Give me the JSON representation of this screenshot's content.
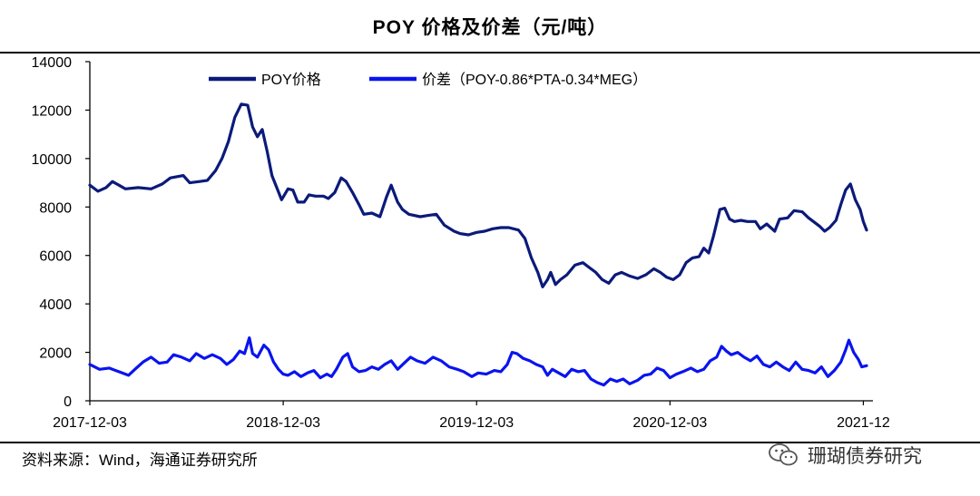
{
  "chart_data": {
    "type": "line",
    "title": "POY 价格及价差（元/吨）",
    "xlabel": "",
    "ylabel": "",
    "ylim": [
      0,
      14000
    ],
    "yticks": [
      0,
      2000,
      4000,
      6000,
      8000,
      10000,
      12000,
      14000
    ],
    "xticks": [
      {
        "label": "2017-12-03",
        "x": 0
      },
      {
        "label": "2018-12-03",
        "x": 12
      },
      {
        "label": "2019-12-03",
        "x": 24
      },
      {
        "label": "2020-12-03",
        "x": 36
      },
      {
        "label": "2021-12",
        "x": 48
      }
    ],
    "xlim": [
      0,
      48.2
    ],
    "legend_position": "top",
    "series": [
      {
        "name": "POY价格",
        "color": "#0b1a7a",
        "points": [
          [
            0,
            8900
          ],
          [
            0.5,
            8650
          ],
          [
            1,
            8800
          ],
          [
            1.4,
            9050
          ],
          [
            1.8,
            8900
          ],
          [
            2.2,
            8750
          ],
          [
            3,
            8800
          ],
          [
            3.8,
            8750
          ],
          [
            4.5,
            8950
          ],
          [
            5,
            9200
          ],
          [
            5.8,
            9300
          ],
          [
            6.2,
            9000
          ],
          [
            6.8,
            9050
          ],
          [
            7.3,
            9100
          ],
          [
            7.8,
            9500
          ],
          [
            8.2,
            10000
          ],
          [
            8.6,
            10700
          ],
          [
            9,
            11700
          ],
          [
            9.4,
            12250
          ],
          [
            9.8,
            12200
          ],
          [
            10.1,
            11300
          ],
          [
            10.4,
            10900
          ],
          [
            10.7,
            11200
          ],
          [
            11,
            10300
          ],
          [
            11.3,
            9300
          ],
          [
            11.6,
            8800
          ],
          [
            11.9,
            8300
          ],
          [
            12.3,
            8750
          ],
          [
            12.6,
            8700
          ],
          [
            12.9,
            8200
          ],
          [
            13.3,
            8200
          ],
          [
            13.6,
            8500
          ],
          [
            14,
            8450
          ],
          [
            14.5,
            8450
          ],
          [
            14.8,
            8350
          ],
          [
            15.2,
            8600
          ],
          [
            15.6,
            9200
          ],
          [
            15.9,
            9050
          ],
          [
            16.3,
            8600
          ],
          [
            16.7,
            8100
          ],
          [
            17,
            7700
          ],
          [
            17.5,
            7750
          ],
          [
            18,
            7600
          ],
          [
            18.4,
            8400
          ],
          [
            18.7,
            8900
          ],
          [
            19.1,
            8200
          ],
          [
            19.4,
            7900
          ],
          [
            19.8,
            7700
          ],
          [
            20.5,
            7600
          ],
          [
            21,
            7650
          ],
          [
            21.5,
            7700
          ],
          [
            22,
            7250
          ],
          [
            22.6,
            7000
          ],
          [
            23,
            6900
          ],
          [
            23.5,
            6850
          ],
          [
            24,
            6950
          ],
          [
            24.5,
            7000
          ],
          [
            25,
            7100
          ],
          [
            25.5,
            7150
          ],
          [
            26,
            7150
          ],
          [
            26.6,
            7050
          ],
          [
            27,
            6700
          ],
          [
            27.4,
            5900
          ],
          [
            27.8,
            5300
          ],
          [
            28.1,
            4700
          ],
          [
            28.4,
            5000
          ],
          [
            28.6,
            5300
          ],
          [
            28.9,
            4800
          ],
          [
            29.2,
            5000
          ],
          [
            29.6,
            5200
          ],
          [
            30.1,
            5600
          ],
          [
            30.6,
            5700
          ],
          [
            31,
            5500
          ],
          [
            31.4,
            5300
          ],
          [
            31.8,
            5000
          ],
          [
            32.2,
            4850
          ],
          [
            32.6,
            5200
          ],
          [
            33,
            5300
          ],
          [
            33.5,
            5150
          ],
          [
            34,
            5050
          ],
          [
            34.5,
            5200
          ],
          [
            35,
            5450
          ],
          [
            35.4,
            5300
          ],
          [
            35.8,
            5100
          ],
          [
            36.2,
            5000
          ],
          [
            36.6,
            5200
          ],
          [
            37,
            5700
          ],
          [
            37.4,
            5900
          ],
          [
            37.8,
            5950
          ],
          [
            38.1,
            6300
          ],
          [
            38.4,
            6100
          ],
          [
            38.7,
            6800
          ],
          [
            39.1,
            7900
          ],
          [
            39.4,
            7950
          ],
          [
            39.7,
            7500
          ],
          [
            40,
            7400
          ],
          [
            40.4,
            7450
          ],
          [
            40.8,
            7400
          ],
          [
            41.3,
            7400
          ],
          [
            41.6,
            7100
          ],
          [
            42,
            7300
          ],
          [
            42.5,
            7000
          ],
          [
            42.8,
            7500
          ],
          [
            43.3,
            7550
          ],
          [
            43.7,
            7850
          ],
          [
            44.2,
            7800
          ],
          [
            44.6,
            7550
          ],
          [
            44.9,
            7400
          ],
          [
            45.3,
            7200
          ],
          [
            45.6,
            7000
          ],
          [
            45.9,
            7150
          ],
          [
            46.3,
            7450
          ],
          [
            46.6,
            8100
          ],
          [
            46.9,
            8700
          ],
          [
            47.2,
            8950
          ],
          [
            47.5,
            8300
          ],
          [
            47.8,
            7900
          ],
          [
            48,
            7400
          ],
          [
            48.2,
            7050
          ]
        ]
      },
      {
        "name": "价差（POY-0.86*PTA-0.34*MEG）",
        "color": "#0a14ee",
        "points": [
          [
            0,
            1500
          ],
          [
            0.6,
            1300
          ],
          [
            1.2,
            1350
          ],
          [
            1.8,
            1200
          ],
          [
            2.4,
            1050
          ],
          [
            2.8,
            1300
          ],
          [
            3.3,
            1600
          ],
          [
            3.8,
            1800
          ],
          [
            4.3,
            1550
          ],
          [
            4.8,
            1600
          ],
          [
            5.2,
            1900
          ],
          [
            5.7,
            1800
          ],
          [
            6.2,
            1650
          ],
          [
            6.6,
            1950
          ],
          [
            7.1,
            1750
          ],
          [
            7.6,
            1900
          ],
          [
            8.1,
            1750
          ],
          [
            8.5,
            1500
          ],
          [
            8.9,
            1700
          ],
          [
            9.3,
            2050
          ],
          [
            9.6,
            1950
          ],
          [
            9.9,
            2600
          ],
          [
            10.1,
            1950
          ],
          [
            10.4,
            1800
          ],
          [
            10.8,
            2300
          ],
          [
            11.1,
            2100
          ],
          [
            11.4,
            1600
          ],
          [
            11.7,
            1300
          ],
          [
            12,
            1100
          ],
          [
            12.3,
            1050
          ],
          [
            12.7,
            1200
          ],
          [
            13.1,
            1000
          ],
          [
            13.5,
            1150
          ],
          [
            13.9,
            1250
          ],
          [
            14.3,
            950
          ],
          [
            14.7,
            1100
          ],
          [
            15,
            1000
          ],
          [
            15.3,
            1300
          ],
          [
            15.7,
            1800
          ],
          [
            16,
            1950
          ],
          [
            16.3,
            1400
          ],
          [
            16.7,
            1200
          ],
          [
            17.1,
            1250
          ],
          [
            17.5,
            1400
          ],
          [
            17.9,
            1300
          ],
          [
            18.3,
            1500
          ],
          [
            18.7,
            1650
          ],
          [
            19.1,
            1300
          ],
          [
            19.5,
            1550
          ],
          [
            19.9,
            1800
          ],
          [
            20.3,
            1650
          ],
          [
            20.8,
            1550
          ],
          [
            21.3,
            1800
          ],
          [
            21.8,
            1650
          ],
          [
            22.3,
            1400
          ],
          [
            22.8,
            1300
          ],
          [
            23.2,
            1200
          ],
          [
            23.7,
            1000
          ],
          [
            24.1,
            1150
          ],
          [
            24.6,
            1100
          ],
          [
            25.1,
            1250
          ],
          [
            25.5,
            1200
          ],
          [
            25.9,
            1500
          ],
          [
            26.2,
            2000
          ],
          [
            26.5,
            1950
          ],
          [
            26.9,
            1750
          ],
          [
            27.3,
            1650
          ],
          [
            27.7,
            1500
          ],
          [
            28.1,
            1400
          ],
          [
            28.4,
            1050
          ],
          [
            28.7,
            1300
          ],
          [
            29.1,
            1150
          ],
          [
            29.5,
            1000
          ],
          [
            29.9,
            1300
          ],
          [
            30.3,
            1200
          ],
          [
            30.7,
            1250
          ],
          [
            31.1,
            900
          ],
          [
            31.5,
            750
          ],
          [
            31.9,
            650
          ],
          [
            32.3,
            900
          ],
          [
            32.7,
            800
          ],
          [
            33.1,
            900
          ],
          [
            33.5,
            700
          ],
          [
            34,
            850
          ],
          [
            34.4,
            1050
          ],
          [
            34.8,
            1100
          ],
          [
            35.2,
            1350
          ],
          [
            35.6,
            1250
          ],
          [
            36,
            950
          ],
          [
            36.4,
            1100
          ],
          [
            36.8,
            1200
          ],
          [
            37.3,
            1350
          ],
          [
            37.7,
            1200
          ],
          [
            38.1,
            1300
          ],
          [
            38.5,
            1650
          ],
          [
            38.9,
            1800
          ],
          [
            39.2,
            2250
          ],
          [
            39.5,
            2050
          ],
          [
            39.8,
            1900
          ],
          [
            40.2,
            2000
          ],
          [
            40.6,
            1800
          ],
          [
            41,
            1650
          ],
          [
            41.4,
            1850
          ],
          [
            41.8,
            1500
          ],
          [
            42.2,
            1400
          ],
          [
            42.6,
            1600
          ],
          [
            43,
            1400
          ],
          [
            43.4,
            1250
          ],
          [
            43.8,
            1600
          ],
          [
            44.2,
            1300
          ],
          [
            44.6,
            1250
          ],
          [
            45,
            1150
          ],
          [
            45.4,
            1400
          ],
          [
            45.8,
            1000
          ],
          [
            46.2,
            1250
          ],
          [
            46.6,
            1600
          ],
          [
            46.9,
            2100
          ],
          [
            47.1,
            2500
          ],
          [
            47.4,
            2000
          ],
          [
            47.7,
            1700
          ],
          [
            47.9,
            1400
          ],
          [
            48.2,
            1450
          ]
        ]
      }
    ]
  },
  "source_text": "资料来源：Wind，海通证券研究所",
  "watermark_text": "珊瑚债券研究",
  "watermark_icon": "wechat-icon"
}
